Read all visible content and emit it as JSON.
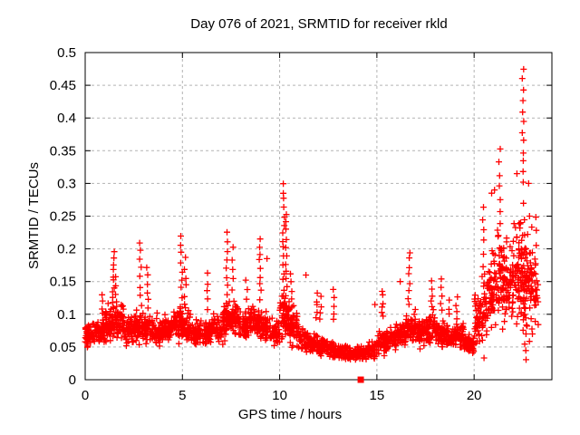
{
  "page": {
    "background": "#ffffff"
  },
  "chart_data": {
    "type": "scatter",
    "title": "Day 076 of 2021, SRMTID for receiver rkld",
    "xlabel": "GPS time / hours",
    "ylabel": "SRMTID / TECUs",
    "xlim": [
      0,
      24
    ],
    "ylim": [
      0,
      0.5
    ],
    "xticks": {
      "values": [
        0,
        5,
        10,
        15,
        20
      ],
      "labels": [
        "0",
        "5",
        "10",
        "15",
        "20"
      ]
    },
    "yticks": {
      "values": [
        0,
        0.05,
        0.1,
        0.15,
        0.2,
        0.25,
        0.3,
        0.35,
        0.4,
        0.45,
        0.5
      ],
      "labels": [
        "0",
        "0.05",
        "0.1",
        "0.15",
        "0.2",
        "0.25",
        "0.3",
        "0.35",
        "0.4",
        "0.45",
        "0.5"
      ]
    },
    "grid": {
      "show": true,
      "style": "dashed",
      "color": "#b3b3b3"
    },
    "frame_color": "#000000",
    "marker": {
      "shape": "plus",
      "color": "#ff0000",
      "size": 7,
      "stroke_width": 1.3
    },
    "legend": "none",
    "seed": 20210317,
    "scatter_profile": {
      "comment": "dense scatter summarized as half-hour bins: [hour_start, width_h, n_points, mean_TECU, spread_TECU]",
      "bins": [
        [
          0.0,
          0.5,
          52,
          0.068,
          0.014
        ],
        [
          0.5,
          0.5,
          52,
          0.072,
          0.015
        ],
        [
          1.0,
          0.5,
          56,
          0.085,
          0.02
        ],
        [
          1.5,
          0.5,
          56,
          0.088,
          0.02
        ],
        [
          2.0,
          0.5,
          52,
          0.076,
          0.016
        ],
        [
          2.5,
          0.5,
          52,
          0.082,
          0.019
        ],
        [
          3.0,
          0.5,
          52,
          0.08,
          0.018
        ],
        [
          3.5,
          0.5,
          52,
          0.075,
          0.016
        ],
        [
          4.0,
          0.5,
          52,
          0.078,
          0.016
        ],
        [
          4.5,
          0.5,
          56,
          0.085,
          0.019
        ],
        [
          5.0,
          0.5,
          56,
          0.082,
          0.019
        ],
        [
          5.5,
          0.5,
          52,
          0.07,
          0.015
        ],
        [
          6.0,
          0.5,
          52,
          0.073,
          0.016
        ],
        [
          6.5,
          0.5,
          52,
          0.078,
          0.017
        ],
        [
          7.0,
          0.5,
          56,
          0.088,
          0.02
        ],
        [
          7.5,
          0.5,
          56,
          0.092,
          0.02
        ],
        [
          8.0,
          0.5,
          52,
          0.082,
          0.018
        ],
        [
          8.5,
          0.5,
          56,
          0.088,
          0.019
        ],
        [
          9.0,
          0.5,
          52,
          0.08,
          0.018
        ],
        [
          9.5,
          0.5,
          52,
          0.072,
          0.016
        ],
        [
          10.0,
          0.5,
          60,
          0.095,
          0.028
        ],
        [
          10.5,
          0.5,
          52,
          0.08,
          0.02
        ],
        [
          11.0,
          0.5,
          48,
          0.062,
          0.015
        ],
        [
          11.5,
          0.5,
          48,
          0.056,
          0.013
        ],
        [
          12.0,
          0.5,
          48,
          0.05,
          0.012
        ],
        [
          12.5,
          0.5,
          48,
          0.046,
          0.011
        ],
        [
          13.0,
          0.5,
          46,
          0.042,
          0.009
        ],
        [
          13.5,
          0.5,
          46,
          0.039,
          0.009
        ],
        [
          14.0,
          0.5,
          46,
          0.04,
          0.009
        ],
        [
          14.5,
          0.5,
          46,
          0.046,
          0.011
        ],
        [
          15.0,
          0.5,
          48,
          0.058,
          0.014
        ],
        [
          15.5,
          0.5,
          48,
          0.06,
          0.014
        ],
        [
          16.0,
          0.5,
          50,
          0.068,
          0.016
        ],
        [
          16.5,
          0.5,
          52,
          0.078,
          0.018
        ],
        [
          17.0,
          0.5,
          50,
          0.073,
          0.016
        ],
        [
          17.5,
          0.5,
          50,
          0.078,
          0.017
        ],
        [
          18.0,
          0.5,
          50,
          0.07,
          0.015
        ],
        [
          18.5,
          0.5,
          48,
          0.065,
          0.015
        ],
        [
          19.0,
          0.5,
          52,
          0.068,
          0.015
        ],
        [
          19.5,
          0.5,
          52,
          0.055,
          0.012
        ],
        [
          20.0,
          0.5,
          56,
          0.095,
          0.032
        ],
        [
          20.5,
          0.5,
          58,
          0.125,
          0.048
        ],
        [
          21.0,
          0.5,
          62,
          0.145,
          0.052
        ],
        [
          21.5,
          0.5,
          62,
          0.15,
          0.052
        ],
        [
          22.0,
          0.5,
          66,
          0.165,
          0.06
        ],
        [
          22.5,
          0.5,
          66,
          0.15,
          0.065
        ],
        [
          23.0,
          0.3,
          22,
          0.14,
          0.05
        ]
      ],
      "spike_columns": [
        [
          0.9,
          4,
          0.1,
          0.13
        ],
        [
          1.45,
          10,
          0.115,
          0.195
        ],
        [
          1.6,
          5,
          0.11,
          0.155
        ],
        [
          2.85,
          8,
          0.115,
          0.21
        ],
        [
          3.2,
          6,
          0.11,
          0.17
        ],
        [
          4.95,
          8,
          0.125,
          0.22
        ],
        [
          5.15,
          6,
          0.115,
          0.185
        ],
        [
          6.3,
          5,
          0.11,
          0.16
        ],
        [
          7.3,
          9,
          0.115,
          0.225
        ],
        [
          7.6,
          6,
          0.12,
          0.2
        ],
        [
          8.3,
          4,
          0.105,
          0.15
        ],
        [
          9.0,
          9,
          0.125,
          0.215
        ],
        [
          10.2,
          16,
          0.115,
          0.3
        ],
        [
          10.33,
          12,
          0.115,
          0.255
        ],
        [
          10.6,
          5,
          0.11,
          0.16
        ],
        [
          11.9,
          5,
          0.095,
          0.13
        ],
        [
          12.1,
          4,
          0.09,
          0.125
        ],
        [
          12.8,
          5,
          0.09,
          0.135
        ],
        [
          15.3,
          6,
          0.095,
          0.135
        ],
        [
          16.65,
          8,
          0.115,
          0.195
        ],
        [
          17.8,
          5,
          0.11,
          0.15
        ],
        [
          18.3,
          5,
          0.105,
          0.155
        ],
        [
          18.7,
          3,
          0.1,
          0.12
        ],
        [
          19.1,
          4,
          0.095,
          0.125
        ],
        [
          20.45,
          8,
          0.14,
          0.265
        ],
        [
          21.3,
          10,
          0.18,
          0.35
        ],
        [
          22.5,
          12,
          0.3,
          0.475
        ],
        [
          22.55,
          8,
          0.1,
          0.27
        ],
        [
          22.65,
          10,
          0.03,
          0.15
        ],
        [
          23.15,
          8,
          0.09,
          0.25
        ]
      ],
      "outliers": [
        [
          22.3,
          0.2
        ],
        [
          20.9,
          0.285
        ],
        [
          21.05,
          0.29
        ],
        [
          22.2,
          0.315
        ],
        [
          22.8,
          0.3
        ],
        [
          22.85,
          0.25
        ],
        [
          14.9,
          0.115
        ],
        [
          11.35,
          0.16
        ],
        [
          16.2,
          0.15
        ],
        [
          9.35,
          0.185
        ]
      ],
      "zero_marker": {
        "x": 14.17,
        "y": 0.0,
        "shape": "filled-square"
      }
    }
  }
}
